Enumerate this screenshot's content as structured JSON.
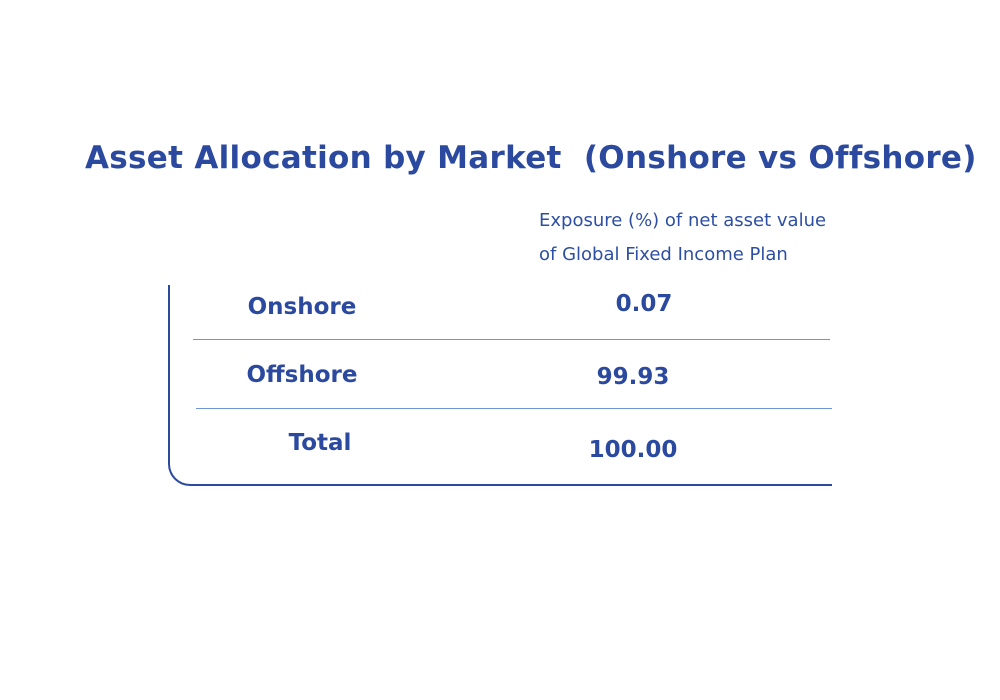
{
  "title": "Asset Allocation by Market  (Onshore vs Offshore)",
  "column_header": [
    "Exposure (%) of net asset value",
    "of Global Fixed Income Plan"
  ],
  "rows": [
    {
      "label": "Onshore",
      "value": "0.07"
    },
    {
      "label": "Offshore",
      "value": "99.93"
    },
    {
      "label": "Total",
      "value": "100.00"
    }
  ],
  "colors": {
    "text": "#2b4a9f",
    "divider": "#6f95d8"
  }
}
